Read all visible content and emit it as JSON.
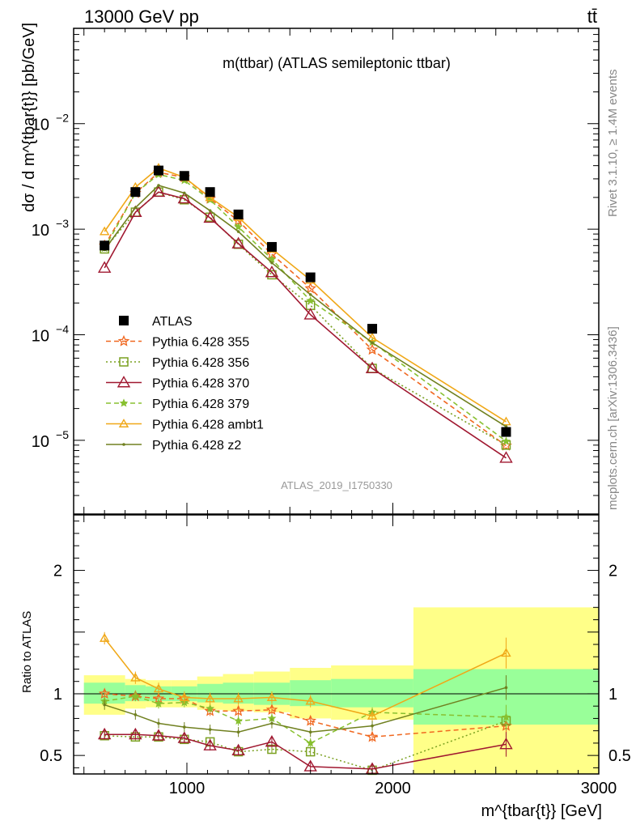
{
  "header": {
    "energy_label": "13000 GeV pp",
    "process_label": "tt̄"
  },
  "side_labels": {
    "rivet": "Rivet 3.1.10, ≥ 1.4M events",
    "mcplots": "mcplots.cern.ch [arXiv:1306.3436]"
  },
  "chart_data": {
    "type": "line",
    "title": "m(ttbar) (ATLAS semileptonic ttbar)",
    "analysis_label": "ATLAS_2019_I1750330",
    "xlabel": "m^{tbar{t}} [GeV]",
    "ylabel": "dσ / d m^{tbar{t}} [pb/GeV]",
    "ratio_ylabel": "Ratio to ATLAS",
    "xlim": [
      450,
      3000
    ],
    "ylim": [
      2e-06,
      0.08
    ],
    "y_scale": "log",
    "ratio_ylim": [
      0.35,
      2.45
    ],
    "x_ticks": [
      1000,
      2000,
      3000
    ],
    "y_ticks": [
      {
        "value": 1e-05,
        "mantissa": "10",
        "exp": "−5"
      },
      {
        "value": 0.0001,
        "mantissa": "10",
        "exp": "−4"
      },
      {
        "value": 0.001,
        "mantissa": "10",
        "exp": "−3"
      },
      {
        "value": 0.01,
        "mantissa": "10",
        "exp": "−2"
      }
    ],
    "ratio_ticks": [
      {
        "value": 0.5,
        "label": "0.5"
      },
      {
        "value": 1,
        "label": "1"
      },
      {
        "value": 2,
        "label": "2"
      }
    ],
    "bin_edges": [
      500,
      700,
      800,
      925,
      1050,
      1175,
      1325,
      1500,
      1700,
      2100,
      3000
    ],
    "bin_centers": [
      600,
      750,
      862.5,
      987.5,
      1112.5,
      1250,
      1412.5,
      1600,
      1900,
      2550
    ],
    "band_green": [
      [
        0.92,
        1.09
      ],
      [
        0.94,
        1.07
      ],
      [
        0.94,
        1.06
      ],
      [
        0.94,
        1.06
      ],
      [
        0.93,
        1.08
      ],
      [
        0.92,
        1.09
      ],
      [
        0.91,
        1.09
      ],
      [
        0.9,
        1.11
      ],
      [
        0.89,
        1.12
      ],
      [
        0.75,
        1.2
      ]
    ],
    "band_yellow": [
      [
        0.83,
        1.15
      ],
      [
        0.88,
        1.12
      ],
      [
        0.89,
        1.11
      ],
      [
        0.89,
        1.11
      ],
      [
        0.87,
        1.14
      ],
      [
        0.86,
        1.16
      ],
      [
        0.85,
        1.18
      ],
      [
        0.8,
        1.21
      ],
      [
        0.79,
        1.23
      ],
      [
        0.35,
        1.7
      ]
    ],
    "legend": {
      "position": "middle-left"
    },
    "grid": false,
    "data_series": {
      "name": "ATLAS",
      "values": [
        0.0007,
        0.00225,
        0.0036,
        0.0032,
        0.00225,
        0.00138,
        0.00068,
        0.00035,
        0.000114,
        1.2e-05
      ]
    },
    "series": [
      {
        "name": "Pythia 6.428 355",
        "color": "#f06820",
        "dash": "6,4",
        "marker": "star",
        "values": [
          0.0007,
          0.0022,
          0.00345,
          0.0031,
          0.00195,
          0.0012,
          0.00058,
          0.000275,
          7.2e-05,
          8.9e-06
        ],
        "ratio": [
          1.0,
          0.98,
          0.96,
          0.96,
          0.86,
          0.86,
          0.87,
          0.78,
          0.65,
          0.74
        ],
        "ratio_err": 0.04
      },
      {
        "name": "Pythia 6.428 356",
        "color": "#7aa020",
        "dash": "2,3",
        "marker": "square",
        "values": [
          0.00065,
          0.00145,
          0.00225,
          0.0019,
          0.0013,
          0.00072,
          0.00037,
          0.00019,
          4.8e-05,
          9e-06
        ],
        "ratio": [
          0.66,
          0.65,
          0.65,
          0.63,
          0.61,
          0.53,
          0.55,
          0.53,
          0.38,
          0.78
        ],
        "ratio_err": 0.03
      },
      {
        "name": "Pythia 6.428 370",
        "color": "#a01830",
        "dash": "",
        "marker": "triangle",
        "values": [
          0.00043,
          0.00145,
          0.00225,
          0.00195,
          0.00128,
          0.00073,
          0.00039,
          0.000155,
          4.8e-05,
          6.8e-06
        ],
        "ratio": [
          0.67,
          0.67,
          0.66,
          0.64,
          0.58,
          0.54,
          0.61,
          0.41,
          0.39,
          0.59
        ],
        "ratio_err": 0.04
      },
      {
        "name": "Pythia 6.428 379",
        "color": "#88c030",
        "dash": "6,4",
        "marker": "smallstar",
        "values": [
          0.00066,
          0.0022,
          0.0033,
          0.0029,
          0.0019,
          0.00105,
          0.00052,
          0.00021,
          8.5e-05,
          9.8e-06
        ],
        "ratio": [
          0.94,
          0.98,
          0.92,
          0.93,
          0.88,
          0.78,
          0.8,
          0.6,
          0.85,
          0.81
        ],
        "ratio_err": 0.04
      },
      {
        "name": "Pythia 6.428 ambt1",
        "color": "#f0a818",
        "dash": "",
        "marker": "triangle-small",
        "values": [
          0.00095,
          0.0025,
          0.0038,
          0.0031,
          0.002,
          0.0013,
          0.00065,
          0.00033,
          9.4e-05,
          1.5e-05
        ],
        "ratio": [
          1.45,
          1.13,
          1.04,
          0.97,
          0.96,
          0.96,
          0.97,
          0.94,
          0.82,
          1.33
        ],
        "ratio_err": 0.05
      },
      {
        "name": "Pythia 6.428 z2",
        "color": "#708020",
        "dash": "",
        "marker": "dot",
        "values": [
          0.00064,
          0.0016,
          0.0026,
          0.0022,
          0.0015,
          0.00095,
          0.00048,
          0.00024,
          8.4e-05,
          1.35e-05
        ],
        "ratio": [
          0.91,
          0.83,
          0.76,
          0.73,
          0.71,
          0.69,
          0.76,
          0.69,
          0.74,
          1.05
        ],
        "ratio_err": 0.04
      }
    ]
  }
}
